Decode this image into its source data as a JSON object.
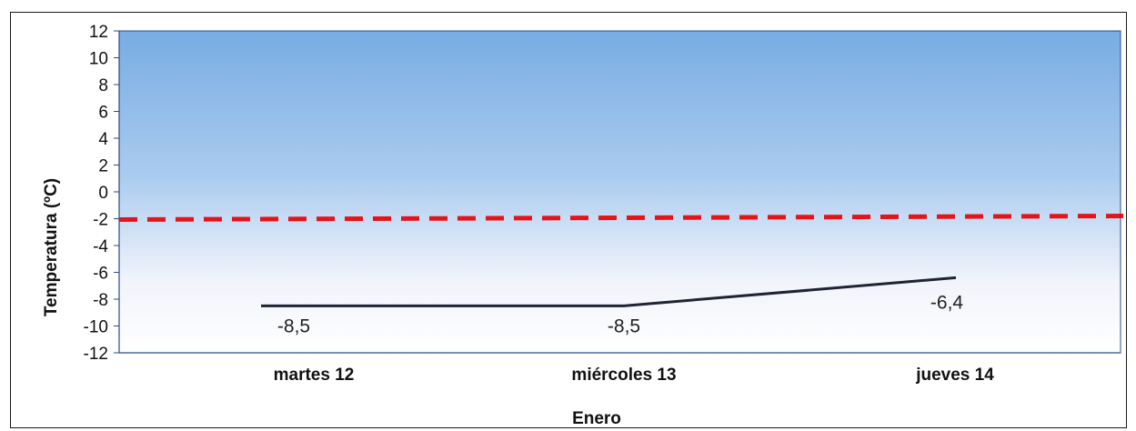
{
  "chart_data": {
    "type": "line",
    "title": "",
    "xlabel": "Enero",
    "ylabel": "Temperatura (ºC)",
    "ylim": [
      -12,
      12
    ],
    "yticks": [
      12,
      10,
      8,
      6,
      4,
      2,
      0,
      -2,
      -4,
      -6,
      -8,
      -10,
      -12
    ],
    "categories": [
      "martes 12",
      "miércoles 13",
      "jueves 14"
    ],
    "series": [
      {
        "values": [
          -8.5,
          -8.5,
          -6.4
        ],
        "labels": [
          "-8,5",
          "-8,5",
          "-6,4"
        ],
        "color": "#1f2433"
      }
    ],
    "threshold": {
      "value": -2,
      "color": "#e3141a",
      "style": "dashed"
    },
    "background": {
      "top": "#7fb0e4",
      "bottom": "#ffffff"
    },
    "grid": false,
    "legend": "none"
  }
}
